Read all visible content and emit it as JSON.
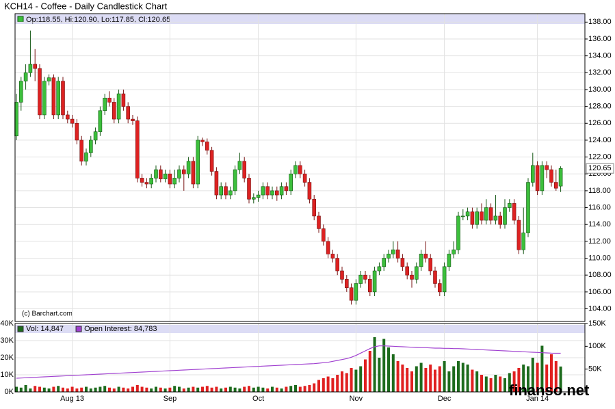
{
  "chart_data": [
    {
      "type": "candlestick",
      "title": "KCH14 - Coffee - Daily Candlestick Chart",
      "header": "Op:118.55, Hi:120.90, Lo:117.85, Cl:120.65",
      "credit": "(c) Barchart.com",
      "categories": [
        null,
        null,
        null,
        null,
        null,
        null,
        null,
        null,
        null,
        null,
        null,
        null,
        "Aug 13",
        null,
        null,
        null,
        null,
        null,
        null,
        null,
        null,
        null,
        null,
        null,
        null,
        null,
        null,
        null,
        null,
        null,
        null,
        null,
        null,
        "Sep",
        null,
        null,
        null,
        null,
        null,
        null,
        null,
        null,
        null,
        null,
        null,
        null,
        null,
        null,
        null,
        null,
        null,
        null,
        "Oct",
        null,
        null,
        null,
        null,
        null,
        null,
        null,
        null,
        null,
        null,
        null,
        null,
        null,
        null,
        null,
        null,
        null,
        null,
        null,
        null,
        "Nov",
        null,
        null,
        null,
        null,
        null,
        null,
        null,
        null,
        null,
        null,
        null,
        null,
        null,
        null,
        null,
        null,
        null,
        null,
        "Dec",
        null,
        null,
        null,
        null,
        null,
        null,
        null,
        null,
        null,
        null,
        null,
        null,
        null,
        null,
        null,
        null,
        null,
        null,
        null,
        "Jan 14",
        null,
        null,
        null,
        null,
        null
      ],
      "open": [
        124.5,
        128.5,
        131,
        132,
        133,
        132.5,
        127,
        131,
        131.4,
        127,
        131,
        127,
        126.5,
        126,
        124,
        121.5,
        122.5,
        124,
        125,
        127.5,
        129,
        128.5,
        126.5,
        129.5,
        128,
        126.5,
        126.3,
        119.5,
        119,
        118.8,
        119.5,
        120.5,
        119.4,
        120,
        118.8,
        119.5,
        120.5,
        120,
        121.5,
        118.8,
        124,
        123.8,
        122.8,
        120.3,
        117.5,
        118.5,
        117.5,
        118,
        120.5,
        121.5,
        119.5,
        117,
        117.2,
        117.5,
        118.5,
        117.5,
        118,
        117.5,
        118.5,
        118,
        120,
        121,
        120,
        119,
        117,
        115,
        113.5,
        112,
        110.5,
        110,
        108.5,
        107.5,
        106.5,
        105,
        107,
        108,
        107.5,
        106,
        108.5,
        109,
        110,
        110.5,
        111,
        110,
        109,
        108,
        107.5,
        109,
        110.5,
        110,
        108.5,
        107,
        106,
        109,
        110.5,
        111,
        115,
        115,
        115.5,
        114,
        115.5,
        114.5,
        116,
        114.5,
        115,
        114,
        116,
        116.5,
        114.5,
        111,
        113,
        119,
        121,
        118,
        121,
        120.5,
        119,
        118.55
      ],
      "high": [
        129.5,
        131.5,
        133,
        137,
        134.8,
        133,
        131.5,
        131.8,
        131.8,
        131.5,
        131.5,
        127.5,
        127,
        126.5,
        124.5,
        123,
        124.5,
        125.5,
        128,
        129.5,
        129.8,
        129,
        130,
        130,
        128.5,
        127,
        126.8,
        120,
        119.5,
        120,
        121,
        121,
        120.5,
        120.5,
        120.5,
        121,
        121,
        122,
        122,
        124.5,
        124.3,
        124.2,
        123.2,
        120.8,
        119,
        119,
        118.5,
        121,
        122.5,
        122,
        120,
        117.7,
        118,
        119,
        119,
        118.5,
        118.5,
        119,
        119,
        120.5,
        121.5,
        121.5,
        120.5,
        119.5,
        117.5,
        115.5,
        114,
        112.5,
        111,
        110.5,
        109,
        108,
        107,
        107.5,
        108.5,
        108.5,
        108,
        109,
        109.5,
        110.5,
        111,
        112,
        112,
        110.5,
        109.5,
        108.5,
        109.5,
        111,
        112,
        110.5,
        109,
        107.5,
        109.5,
        111,
        112,
        115.5,
        115.8,
        116,
        116,
        116,
        116.5,
        117,
        116.5,
        117.5,
        115.5,
        117,
        117,
        117,
        115,
        116,
        119.5,
        122.5,
        121.5,
        121.5,
        121.5,
        121,
        120.5,
        120.9
      ],
      "low": [
        124,
        127.5,
        130,
        131.5,
        131,
        126.5,
        126.5,
        130.5,
        126.5,
        126.5,
        126.5,
        126,
        125.5,
        123.5,
        121,
        121,
        122,
        123.5,
        124.5,
        127,
        128,
        126,
        126,
        127.5,
        126,
        125.8,
        119,
        118.5,
        118.3,
        118.3,
        119,
        119,
        119,
        118.3,
        118.3,
        119,
        118,
        119.5,
        118.3,
        118.3,
        123.3,
        122.3,
        119.8,
        117,
        117,
        117,
        117,
        117.5,
        120,
        119,
        116.5,
        116.5,
        116.7,
        117,
        117,
        117,
        116.8,
        117,
        117.5,
        117.5,
        119.5,
        119.5,
        118.5,
        116.5,
        114.5,
        113,
        111.5,
        110,
        109.5,
        108,
        107,
        106,
        104.5,
        104.5,
        106.5,
        107,
        105.5,
        105.5,
        108,
        108.5,
        109.5,
        110,
        109.5,
        108.5,
        107.5,
        106.5,
        107,
        108.5,
        109.5,
        108,
        106.5,
        105.5,
        105.5,
        108.5,
        110,
        110.5,
        114.5,
        114.5,
        113.5,
        113.5,
        114,
        114,
        114,
        114,
        113.5,
        113.5,
        115.5,
        114,
        110.5,
        110.5,
        112.5,
        118.5,
        117.5,
        117.5,
        119.5,
        118.5,
        118,
        117.85
      ],
      "close": [
        128.5,
        131,
        132,
        133,
        132.5,
        127,
        131,
        131.4,
        127,
        131,
        127,
        126.5,
        126,
        124,
        121.5,
        122.5,
        124,
        125,
        127.5,
        129,
        128.5,
        126.5,
        129.5,
        128,
        126.5,
        126.3,
        119.5,
        119,
        118.8,
        119.5,
        120.5,
        119.4,
        120,
        118.8,
        119.5,
        120.5,
        120,
        121.5,
        118.8,
        124,
        123.8,
        122.8,
        120.3,
        117.5,
        118.5,
        117.5,
        118,
        120.5,
        121.5,
        119.5,
        117,
        117.2,
        117.5,
        118.5,
        117.5,
        118,
        117.5,
        118.5,
        118,
        120,
        121,
        120,
        119,
        117,
        115,
        113.5,
        112,
        110.5,
        110,
        108.5,
        107.5,
        106.5,
        105,
        107,
        108,
        107.5,
        106,
        108.5,
        109,
        110,
        110.5,
        111,
        110,
        109,
        108,
        107.5,
        109,
        110.5,
        110,
        108.5,
        107,
        106,
        109,
        110.5,
        111,
        115,
        115,
        115.5,
        114,
        115.5,
        114.5,
        116,
        114.5,
        115,
        114,
        116,
        116.5,
        114.5,
        111,
        113,
        119,
        121,
        118,
        121,
        120.5,
        119,
        118.3,
        120.65
      ],
      "up_color": "#3cbf3c",
      "down_color": "#dd2222",
      "ylim": [
        102.5,
        139
      ],
      "yticks": [
        {
          "value": 104,
          "label": "104.00"
        },
        {
          "value": 106,
          "label": "106.00"
        },
        {
          "value": 108,
          "label": "108.00"
        },
        {
          "value": 110,
          "label": "110.00"
        },
        {
          "value": 112,
          "label": "112.00"
        },
        {
          "value": 114,
          "label": "114.00"
        },
        {
          "value": 116,
          "label": "116.00"
        },
        {
          "value": 118,
          "label": "118.00"
        },
        {
          "value": 120,
          "label": "120.00"
        },
        {
          "value": 122,
          "label": "122.00"
        },
        {
          "value": 124,
          "label": "124.00"
        },
        {
          "value": 126,
          "label": "126.00"
        },
        {
          "value": 128,
          "label": "128.00"
        },
        {
          "value": 130,
          "label": "130.00"
        },
        {
          "value": 132,
          "label": "132.00"
        },
        {
          "value": 134,
          "label": "134.00"
        },
        {
          "value": 136,
          "label": "136.00"
        },
        {
          "value": 138,
          "label": "138.00"
        }
      ],
      "grid": true
    },
    {
      "type": "bar",
      "series": [
        {
          "name": "Vol: 14,847",
          "color": "#1d6b1d",
          "down_color": "#e02020",
          "values": [
            3000,
            2500,
            4000,
            2000,
            3500,
            3000,
            2500,
            2000,
            3000,
            3500,
            2500,
            2000,
            3000,
            2000,
            2500,
            3000,
            2000,
            2500,
            3000,
            3500,
            2500,
            2000,
            3000,
            2500,
            2000,
            3000,
            4000,
            3000,
            2500,
            2000,
            3000,
            2500,
            2000,
            2500,
            3500,
            3000,
            2000,
            2500,
            3000,
            2500,
            3000,
            3500,
            2500,
            3000,
            2000,
            2500,
            3000,
            2500,
            2000,
            3000,
            3500,
            2500,
            3000,
            2500,
            2000,
            3000,
            2500,
            2000,
            3000,
            3500,
            4000,
            3000,
            3500,
            4000,
            5000,
            7000,
            8000,
            9000,
            8000,
            10000,
            12000,
            11000,
            14000,
            13000,
            15000,
            19000,
            24000,
            32000,
            20000,
            31000,
            26000,
            22000,
            18000,
            16000,
            14000,
            12000,
            15000,
            17000,
            14000,
            16000,
            13000,
            15000,
            18000,
            12000,
            15000,
            18000,
            17000,
            16000,
            13000,
            12000,
            10000,
            9000,
            8000,
            10000,
            9000,
            8000,
            11000,
            12000,
            14000,
            16000,
            15000,
            20000,
            17000,
            27000,
            16000,
            22000,
            18000,
            14847
          ]
        },
        {
          "name": "Open Interest: 84,783",
          "color": "#a040d0",
          "axis": "y2",
          "values": [
            30000,
            30500,
            31000,
            31500,
            32000,
            32500,
            33000,
            33500,
            34000,
            34500,
            35000,
            35500,
            36000,
            36500,
            37000,
            37500,
            38000,
            38500,
            39000,
            39500,
            40000,
            40500,
            41000,
            41500,
            42000,
            42500,
            43000,
            43500,
            44000,
            44500,
            45000,
            45500,
            46000,
            46500,
            47000,
            47500,
            48000,
            48500,
            49000,
            49500,
            50000,
            50500,
            51000,
            51500,
            52000,
            52500,
            53000,
            53500,
            54000,
            54500,
            55000,
            55500,
            56000,
            56500,
            57000,
            57500,
            58000,
            58500,
            59000,
            59500,
            60000,
            60500,
            61000,
            61500,
            62000,
            63000,
            64000,
            65000,
            67000,
            69000,
            71000,
            73000,
            76000,
            80000,
            85000,
            90000,
            95000,
            99000,
            101000,
            101000,
            100500,
            100000,
            99500,
            99000,
            98500,
            98000,
            97500,
            97000,
            97000,
            96500,
            96000,
            96000,
            95500,
            95500,
            95000,
            95000,
            94500,
            94000,
            93500,
            93000,
            92500,
            92000,
            91500,
            91000,
            90500,
            90000,
            89500,
            89000,
            88500,
            88000,
            87500,
            87000,
            86500,
            86000,
            85500,
            85000,
            84800,
            84783
          ]
        }
      ],
      "ylim": [
        0,
        40000
      ],
      "yticks": [
        {
          "value": 0,
          "label": "0K"
        },
        {
          "value": 10000,
          "label": "10K"
        },
        {
          "value": 20000,
          "label": "20K"
        },
        {
          "value": 30000,
          "label": "30K"
        },
        {
          "value": 40000,
          "label": "40K"
        }
      ],
      "y2lim": [
        0,
        150000
      ],
      "y2ticks": [
        {
          "value": 50000,
          "label": "50K"
        },
        {
          "value": 100000,
          "label": "100K"
        },
        {
          "value": 150000,
          "label": "150K"
        }
      ],
      "grid": true
    }
  ],
  "watermark": "finanso.net"
}
